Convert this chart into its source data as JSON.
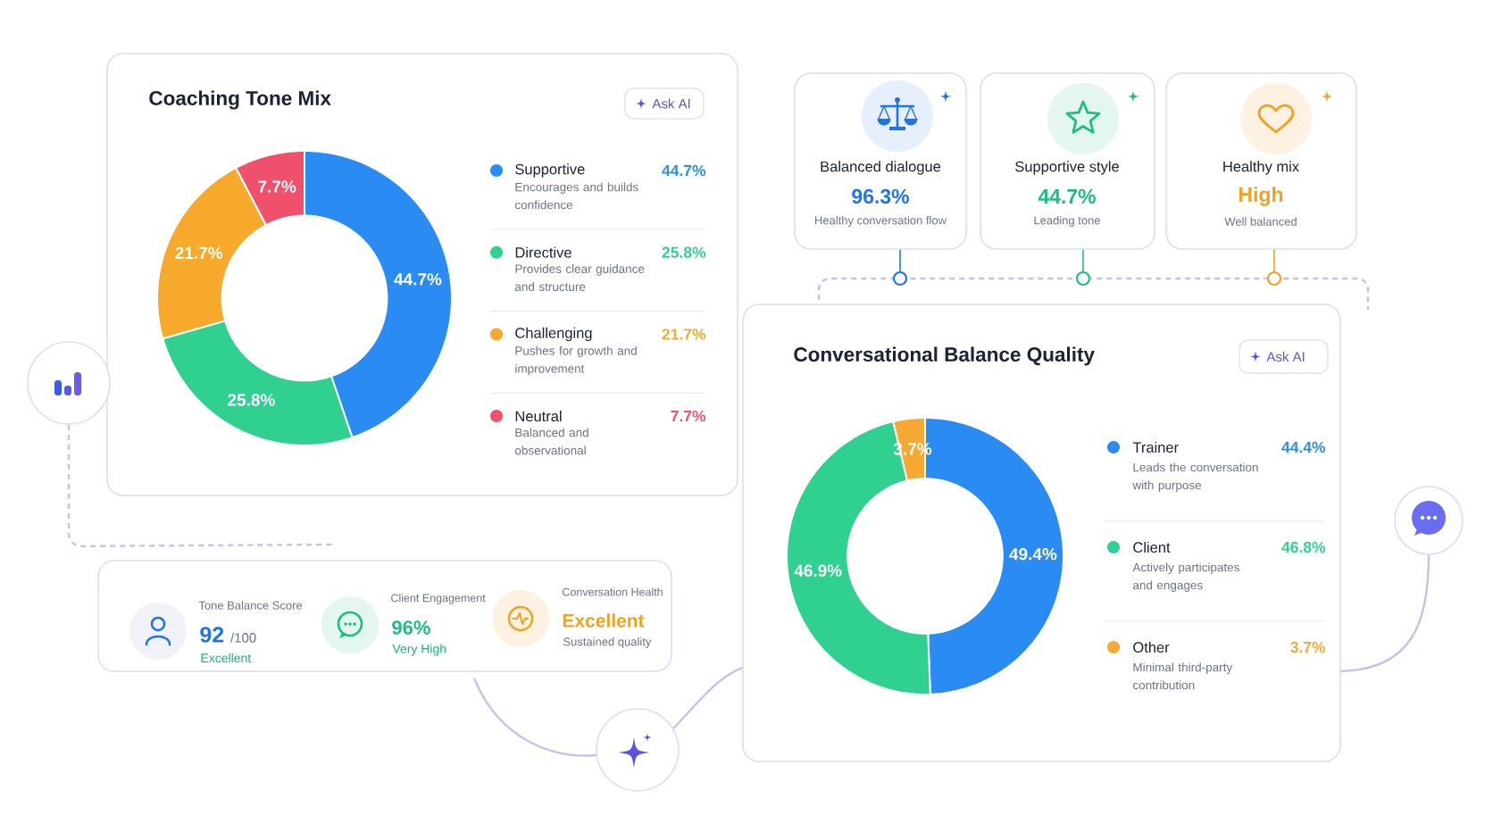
{
  "chart_data": [
    {
      "type": "donut",
      "title": "Coaching Tone Mix",
      "categories": [
        "Supportive",
        "Directive",
        "Challenging",
        "Neutral"
      ],
      "values": [
        44.7,
        25.8,
        21.7,
        7.7
      ],
      "colors": [
        "#2a8cf3",
        "#2fd090",
        "#f7a92b",
        "#f0506c"
      ],
      "value_labels": [
        "44.7%",
        "25.8%",
        "21.7%",
        "7.7%"
      ],
      "legend": "right",
      "annotations": [
        "Ask AI",
        "Encourages and builds confidence",
        "Provides clear guidance and structure",
        "Pushes for growth and improvement",
        "Balanced and observational",
        "44.7%",
        "25.8%",
        "21.7%",
        "7.7%"
      ]
    },
    {
      "type": "other",
      "annotations": [
        "Balanced dialogue",
        "96.3%",
        "Healthy conversation flow",
        "Supportive style",
        "44.7%",
        "Leading tone",
        "Healthy mix",
        "High",
        "Well balanced"
      ]
    },
    {
      "type": "donut",
      "title": "Conversational Balance Quality",
      "categories": [
        "Trainer",
        "Client",
        "Other"
      ],
      "values": [
        49.4,
        46.9,
        3.7
      ],
      "colors": [
        "#2a8cf3",
        "#2fd090",
        "#f5a833"
      ],
      "value_labels": [
        "49.4%",
        "46.9%",
        "3.7%"
      ],
      "legend": "right",
      "annotations": [
        "Ask AI",
        "Leads the conversation with purpose",
        "Actively participates and engages",
        "Minimal third-party contribution",
        "44.4%",
        "46.8%",
        "3.7%"
      ]
    },
    {
      "type": "other",
      "annotations": [
        "Tone Balance Score",
        "92",
        "/100",
        "Excellent",
        "Client Engagement",
        "96%",
        "Very High",
        "Conversation Health",
        "Excellent",
        "Sustained quality"
      ]
    }
  ]
}
